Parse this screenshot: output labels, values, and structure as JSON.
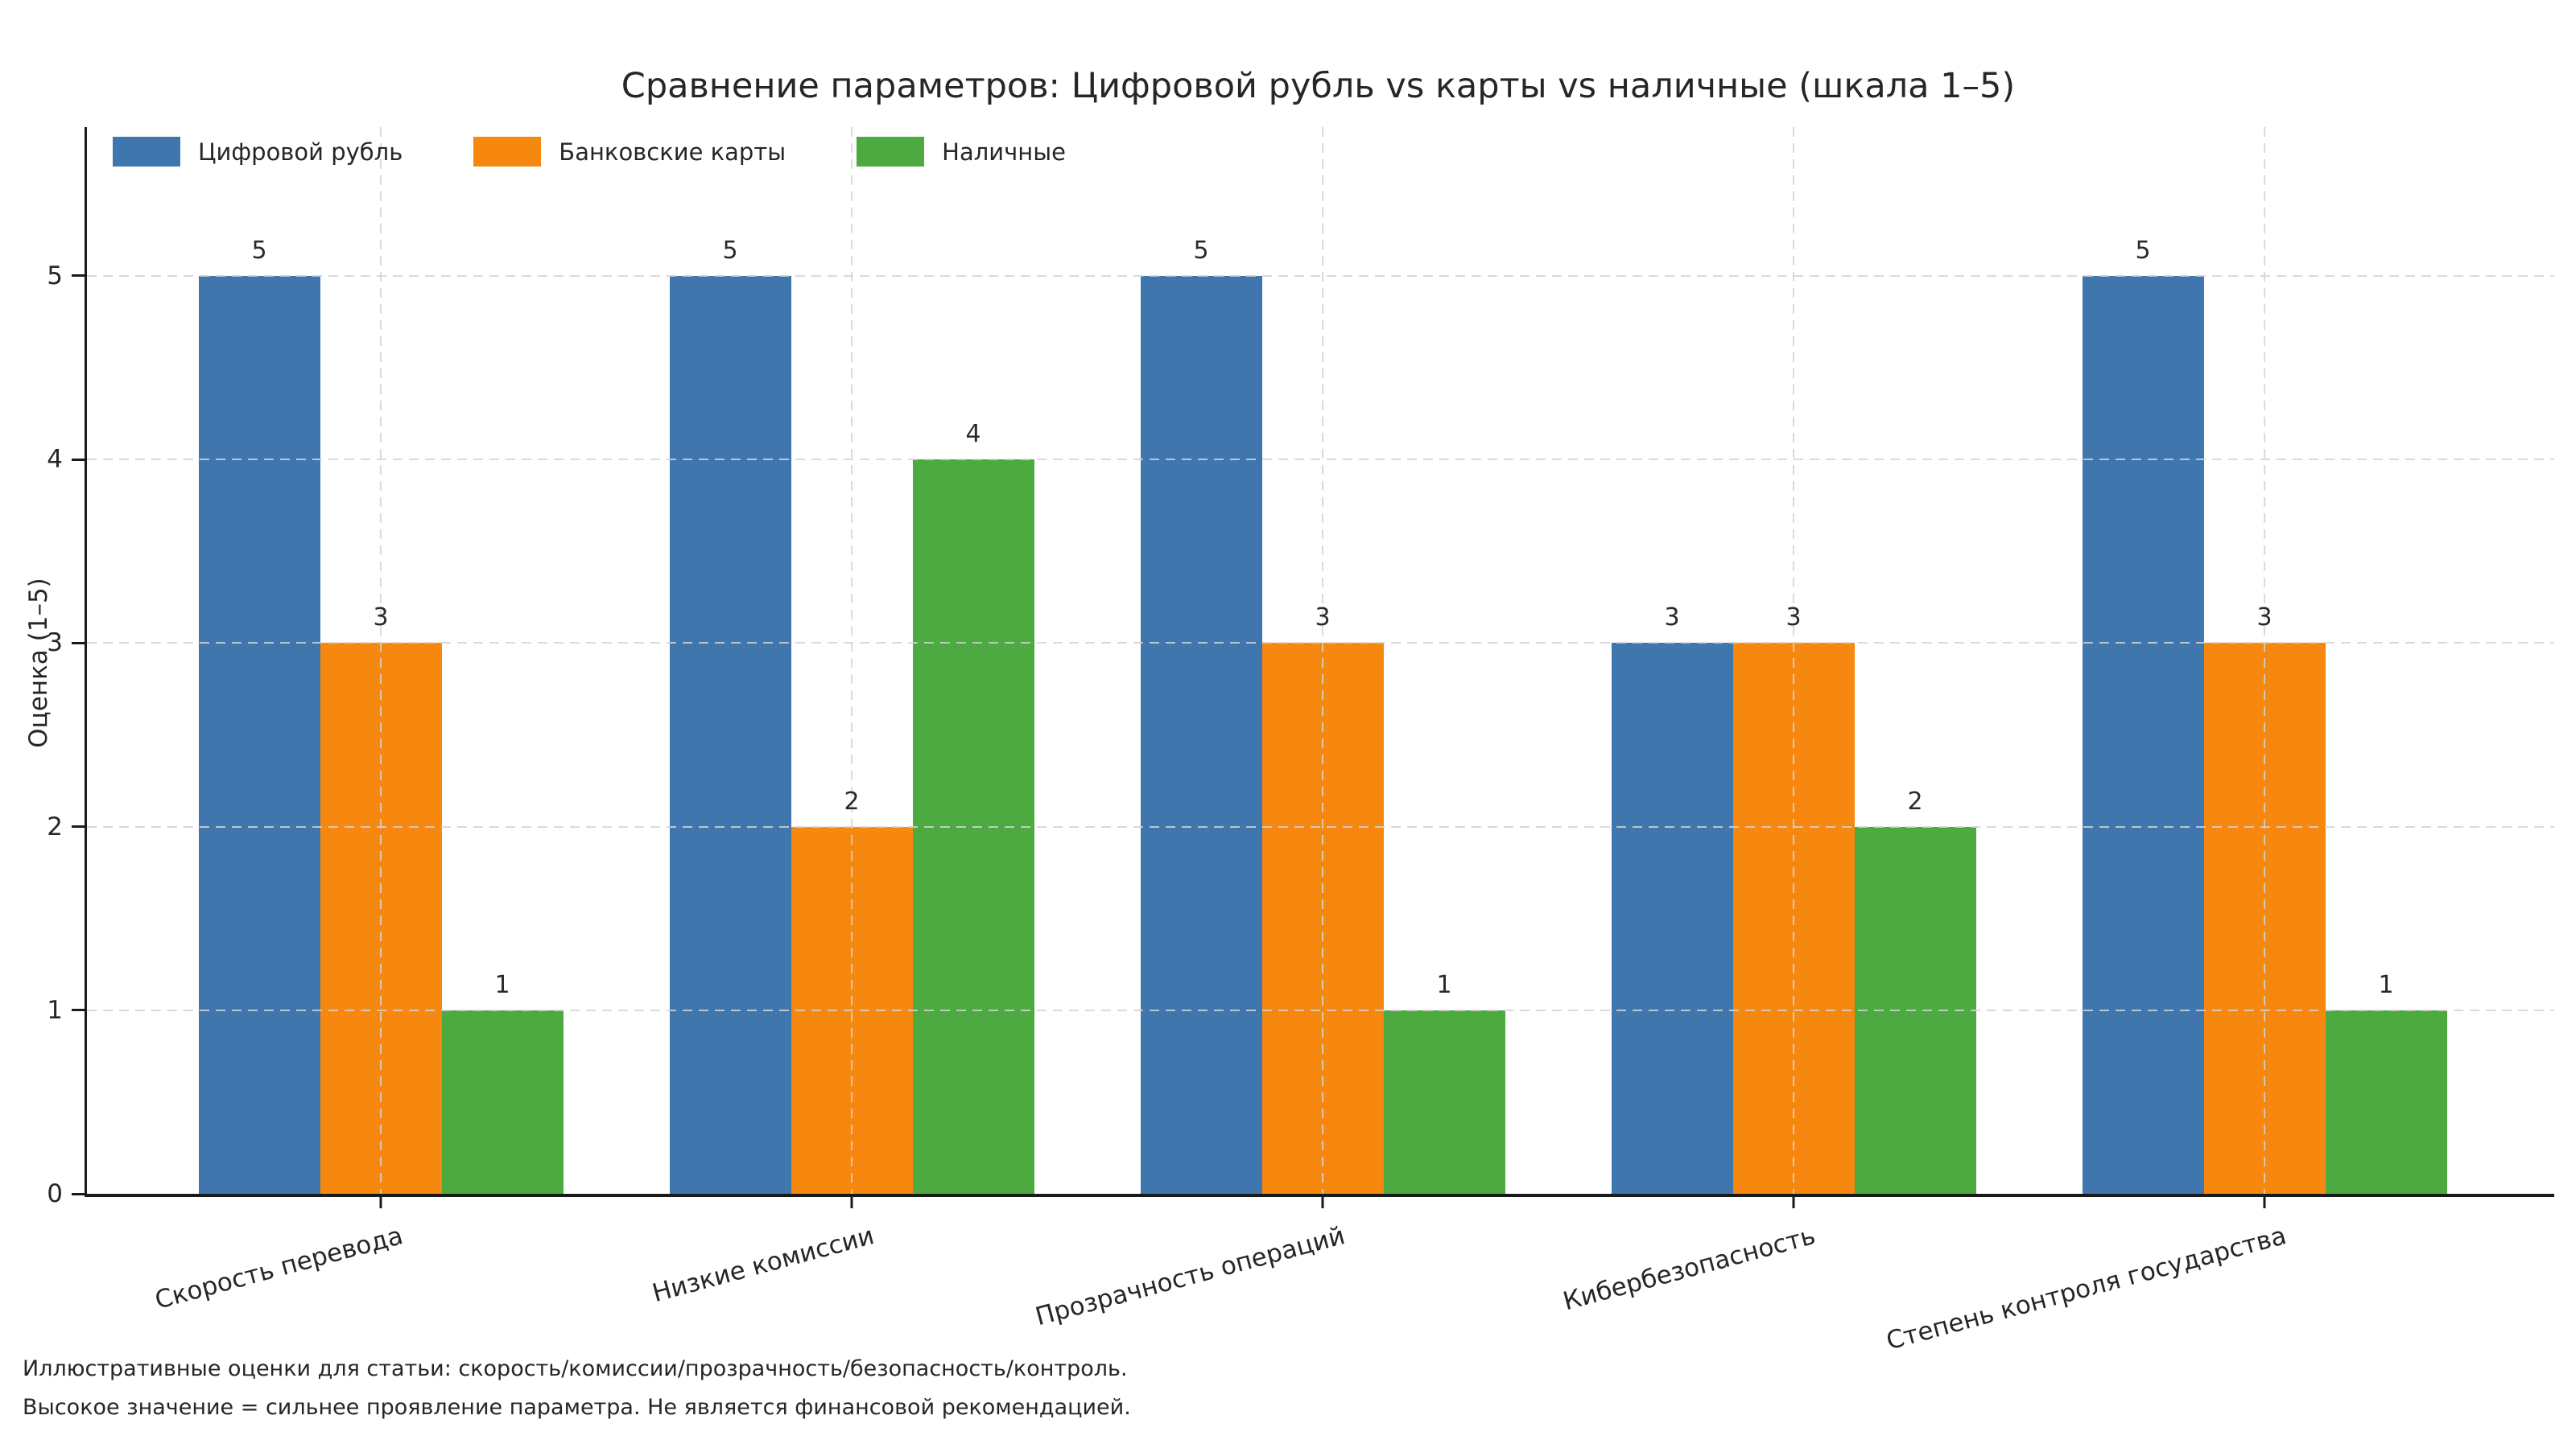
{
  "title": "Сравнение параметров: Цифровой рубль vs карты vs наличные (шкала 1–5)",
  "footnotes": {
    "line1": "Иллюстративные оценки для статьи: скорость/комиссии/прозрачность/безопасность/контроль.",
    "line2": "Высокое значение = сильнее проявление параметра. Не является финансовой рекомендацией."
  },
  "colors": {
    "digital_ruble": "#3f76ae",
    "bank_cards": "#f6870f",
    "cash": "#4caa41",
    "grid": "#d3d3d3",
    "axis": "#1a1a1a",
    "text": "#262626",
    "background": "#ffffff"
  },
  "chart_data": {
    "type": "bar",
    "title": "Сравнение параметров: Цифровой рубль vs карты vs наличные (шкала 1–5)",
    "xlabel": "",
    "ylabel": "Оценка (1–5)",
    "categories": [
      "Скорость перевода",
      "Низкие комиссии",
      "Прозрачность операций",
      "Кибербезопасность",
      "Степень контроля государства"
    ],
    "series": [
      {
        "name": "Цифровой рубль",
        "color": "#3f76ae",
        "values": [
          5,
          5,
          5,
          3,
          5
        ]
      },
      {
        "name": "Банковские карты",
        "color": "#f6870f",
        "values": [
          3,
          2,
          3,
          3,
          3
        ]
      },
      {
        "name": "Наличные",
        "color": "#4caa41",
        "values": [
          1,
          4,
          1,
          2,
          1
        ]
      }
    ],
    "yticks": [
      0,
      1,
      2,
      3,
      4,
      5
    ],
    "ylim": [
      0,
      5.81
    ],
    "grid": true,
    "grid_style": "dashed",
    "grid_over_bars": true,
    "bar_value_labels": true,
    "legend_position": "upper-left",
    "xtick_rotation_deg": 15
  }
}
